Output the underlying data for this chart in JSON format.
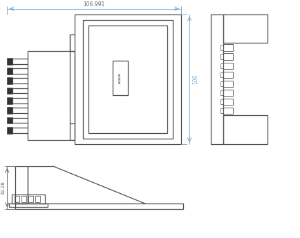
{
  "bg_color": "#ffffff",
  "line_color": "#4a4a4a",
  "dim_color": "#7aabce",
  "dim_text_color": "#666666",
  "dim_106": "106.991",
  "dim_100": "100",
  "dim_42": "42.28",
  "label_text": "ACNSEN",
  "figw": 4.35,
  "figh": 3.45,
  "dpi": 100
}
